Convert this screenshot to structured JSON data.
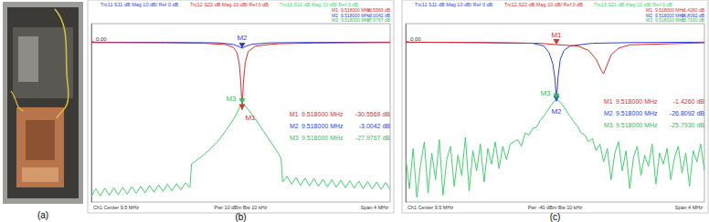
{
  "photo": {
    "caption": "(a)"
  },
  "chart_data": [
    {
      "type": "line",
      "caption": "(b)",
      "xlim": [
        7.5,
        11.5
      ],
      "ylim": [
        -72,
        8
      ],
      "yticks": [
        {
          "value": 0,
          "label": "0.00"
        }
      ],
      "tick_labels": "y",
      "grid": false,
      "annotations": [
        "Ch1 Center 9.5 MHz",
        "Pwr 10 dBm Bw 10 kHz",
        "Span 4 MHz"
      ],
      "series": [
        {
          "name": "Trc11 S11 dB Mag 10 dB/ Ref 0 dB",
          "color": "#2f3fd9",
          "x": [
            7.5,
            8.5,
            9.2,
            9.4,
            9.47,
            9.518,
            9.57,
            9.65,
            9.9,
            10.5,
            11.5
          ],
          "values": [
            -0.3,
            -0.4,
            -0.6,
            -1.3,
            -2.2,
            -3.0042,
            -2.1,
            -1.2,
            -0.6,
            -0.4,
            -0.3
          ]
        },
        {
          "name": "Trc12 S22 dB Mag 10 dB/ Ref 0 dB",
          "color": "#e32b2b",
          "x": [
            7.5,
            8.5,
            9.0,
            9.3,
            9.4,
            9.45,
            9.48,
            9.5,
            9.518,
            9.535,
            9.56,
            9.6,
            9.7,
            10.0,
            10.5,
            11.5
          ],
          "values": [
            -0.5,
            -0.6,
            -0.8,
            -1.4,
            -2.6,
            -5.0,
            -10.0,
            -18.0,
            -30.5569,
            -18.5,
            -9.5,
            -4.5,
            -2.0,
            -1.0,
            -0.7,
            -0.5
          ]
        },
        {
          "name": "Trc13 S12 dB Mag 10 dB/ Ref 0 dB",
          "color": "#3fd46a",
          "x": [
            7.5,
            7.56,
            7.62,
            7.68,
            7.74,
            7.8,
            7.86,
            7.92,
            7.98,
            8.04,
            8.1,
            8.16,
            8.22,
            8.28,
            8.34,
            8.4,
            8.46,
            8.52,
            8.58,
            8.64,
            8.7,
            8.76,
            8.82,
            8.84,
            8.9,
            9.0,
            9.1,
            9.2,
            9.3,
            9.4,
            9.45,
            9.5,
            9.518,
            9.55,
            9.6,
            9.7,
            9.8,
            9.9,
            10.0,
            10.04,
            10.06,
            10.12,
            10.18,
            10.24,
            10.3,
            10.36,
            10.42,
            10.48,
            10.54,
            10.6,
            10.66,
            10.72,
            10.78,
            10.84,
            10.9,
            10.96,
            11.02,
            11.08,
            11.14,
            11.2,
            11.26,
            11.32,
            11.38,
            11.44,
            11.5
          ],
          "values": [
            -69.5,
            -66.0,
            -69.3,
            -65.8,
            -69.0,
            -65.6,
            -68.8,
            -65.4,
            -68.5,
            -65.1,
            -68.2,
            -64.9,
            -67.9,
            -64.6,
            -67.6,
            -64.3,
            -67.3,
            -64.0,
            -67.0,
            -63.7,
            -66.6,
            -63.4,
            -65.5,
            -55.0,
            -53.5,
            -51.0,
            -48.0,
            -44.5,
            -40.0,
            -35.0,
            -32.0,
            -28.6,
            -27.9767,
            -28.5,
            -30.5,
            -35.0,
            -40.0,
            -45.0,
            -50.0,
            -52.5,
            -63.0,
            -60.5,
            -64.0,
            -61.0,
            -64.5,
            -61.3,
            -64.8,
            -61.5,
            -65.0,
            -61.8,
            -65.2,
            -62.0,
            -65.4,
            -62.2,
            -65.6,
            -62.4,
            -65.8,
            -62.6,
            -66.0,
            -62.8,
            -66.2,
            -63.0,
            -66.4,
            -63.2,
            -66.5
          ]
        }
      ],
      "markers": [
        {
          "label": "M1",
          "x": 9.518,
          "y": -30.5569,
          "x_label": "9.518000 MHz",
          "y_label": "-30.5569 dB",
          "color": "#e32b2b"
        },
        {
          "label": "M2",
          "x": 9.518,
          "y": -3.0042,
          "x_label": "9.518000 MHz",
          "y_label": "-3.0042 dB",
          "color": "#2f3fd9"
        },
        {
          "label": "M3",
          "x": 9.518,
          "y": -27.9767,
          "x_label": "9.518000 MHz",
          "y_label": "-27.9767 dB",
          "color": "#2fbf55"
        }
      ]
    },
    {
      "type": "line",
      "caption": "(c)",
      "xlim": [
        7.5,
        11.5
      ],
      "ylim": [
        -72,
        8
      ],
      "yticks": [
        {
          "value": 0,
          "label": "0.00"
        }
      ],
      "tick_labels": "y",
      "grid": false,
      "annotations": [
        "Ch1 Center 9.5 MHz",
        "Pwr -40 dBm Bw 10 kHz",
        "Span 4 MHz"
      ],
      "series": [
        {
          "name": "Trc11 S11 dB Mag 10 dB/ Ref 0 dB",
          "color": "#2f3fd9",
          "x": [
            7.5,
            8.5,
            9.2,
            9.35,
            9.42,
            9.47,
            9.5,
            9.518,
            9.54,
            9.57,
            9.62,
            9.7,
            10.0,
            10.5,
            11.5
          ],
          "values": [
            -0.3,
            -0.5,
            -0.8,
            -2.0,
            -5.0,
            -10.0,
            -17.0,
            -26.8092,
            -16.0,
            -8.0,
            -4.0,
            -2.0,
            -0.8,
            -0.5,
            -0.3
          ]
        },
        {
          "name": "Trc12 S22 dB Mag 10 dB/ Ref 0 dB",
          "color": "#e32b2b",
          "x": [
            7.5,
            8.5,
            9.3,
            9.518,
            9.8,
            9.95,
            10.05,
            10.12,
            10.15,
            10.18,
            10.25,
            10.35,
            10.5,
            11.5
          ],
          "values": [
            -0.3,
            -0.5,
            -0.8,
            -1.426,
            -2.0,
            -4.0,
            -8.0,
            -13.0,
            -14.5,
            -12.0,
            -6.0,
            -3.0,
            -1.5,
            -0.6
          ]
        },
        {
          "name": "Trc13 S21 dB Mag 10 dB/ Ref 0 dB",
          "color": "#3fd46a",
          "x": [
            7.5,
            7.55,
            7.6,
            7.65,
            7.7,
            7.75,
            7.8,
            7.85,
            7.9,
            7.95,
            8.0,
            8.05,
            8.1,
            8.15,
            8.2,
            8.25,
            8.3,
            8.35,
            8.4,
            8.45,
            8.5,
            8.55,
            8.6,
            8.65,
            8.7,
            8.75,
            8.8,
            8.85,
            8.9,
            9.0,
            9.05,
            9.1,
            9.15,
            9.2,
            9.25,
            9.3,
            9.35,
            9.4,
            9.45,
            9.5,
            9.518,
            9.55,
            9.6,
            9.65,
            9.7,
            9.75,
            9.8,
            9.85,
            9.9,
            9.95,
            10.0,
            10.05,
            10.1,
            10.15,
            10.2,
            10.25,
            10.3,
            10.35,
            10.4,
            10.45,
            10.5,
            10.55,
            10.6,
            10.65,
            10.7,
            10.75,
            10.8,
            10.85,
            10.9,
            10.95,
            11.0,
            11.05,
            11.1,
            11.15,
            11.2,
            11.25,
            11.3,
            11.35,
            11.4,
            11.45,
            11.5
          ],
          "values": [
            -52,
            -66,
            -48,
            -70,
            -55,
            -45,
            -68,
            -50,
            -62,
            -44,
            -69,
            -53,
            -47,
            -65,
            -51,
            -60,
            -43,
            -67,
            -49,
            -58,
            -46,
            -63,
            -48,
            -55,
            -45,
            -57,
            -47,
            -53,
            -46,
            -44,
            -47,
            -41,
            -42,
            -39,
            -38.5,
            -35.5,
            -33.5,
            -31,
            -28.5,
            -26.3,
            -25.793,
            -26.5,
            -28.5,
            -31,
            -33.5,
            -36,
            -38,
            -41,
            -42,
            -45,
            -43.5,
            -49,
            -46,
            -54,
            -48,
            -62,
            -50,
            -45,
            -58,
            -49,
            -66,
            -52,
            -47,
            -60,
            -51,
            -56,
            -46,
            -64,
            -50,
            -55,
            -48,
            -62,
            -52,
            -47,
            -59,
            -50,
            -65,
            -49,
            -54,
            -46,
            -58
          ]
        }
      ],
      "markers": [
        {
          "label": "M1",
          "x": 9.518,
          "y": -1.426,
          "x_label": "9.518000 MHz",
          "y_label": "-1.4260 dB",
          "color": "#e32b2b"
        },
        {
          "label": "M2",
          "x": 9.518,
          "y": -26.8092,
          "x_label": "9.518000 MHz",
          "y_label": "-26.8092 dB",
          "color": "#2f3fd9"
        },
        {
          "label": "M3",
          "x": 9.518,
          "y": -25.793,
          "x_label": "9.518000 MHz",
          "y_label": "-25.7930 dB",
          "color": "#2fbf55"
        }
      ]
    }
  ]
}
